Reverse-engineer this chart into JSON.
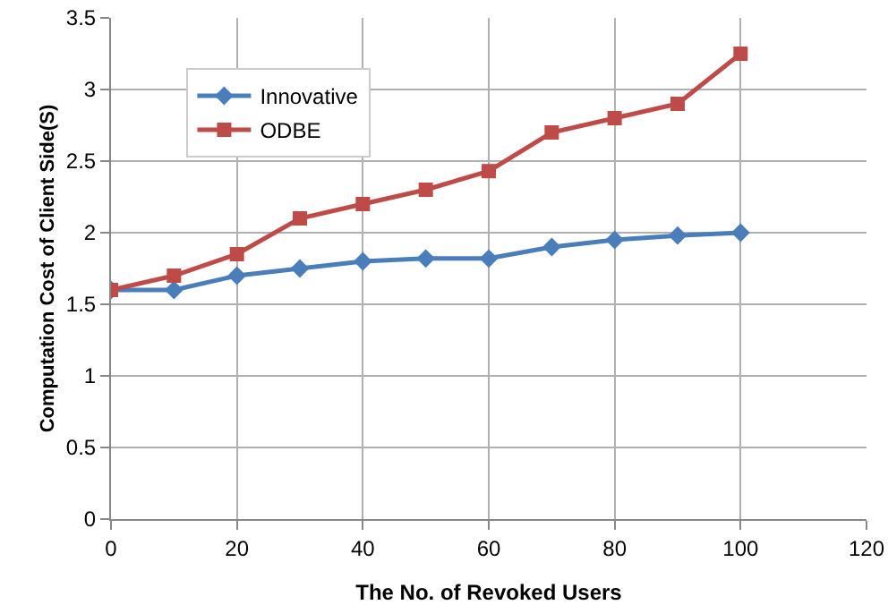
{
  "chart_data": {
    "type": "line",
    "xlabel": "The No. of Revoked Users",
    "ylabel": "Computation Cost of Client Side(S)",
    "x": [
      0,
      10,
      20,
      30,
      40,
      50,
      60,
      70,
      80,
      90,
      100
    ],
    "series": [
      {
        "name": "Innovative",
        "color": "#4a7ebb",
        "marker": "diamond",
        "values": [
          1.6,
          1.6,
          1.7,
          1.75,
          1.8,
          1.82,
          1.82,
          1.9,
          1.95,
          1.98,
          2.0
        ]
      },
      {
        "name": "ODBE",
        "color": "#be4b48",
        "marker": "square",
        "values": [
          1.6,
          1.7,
          1.85,
          2.1,
          2.2,
          2.3,
          2.43,
          2.7,
          2.8,
          2.9,
          3.25
        ]
      }
    ],
    "xlim": [
      0,
      120
    ],
    "xticks": [
      0,
      20,
      40,
      60,
      80,
      100,
      120
    ],
    "ylim": [
      0,
      3.5
    ],
    "yticks": [
      0,
      0.5,
      1,
      1.5,
      2,
      2.5,
      3,
      3.5
    ],
    "grid": true,
    "legend": "top left",
    "line_style": "solid"
  }
}
